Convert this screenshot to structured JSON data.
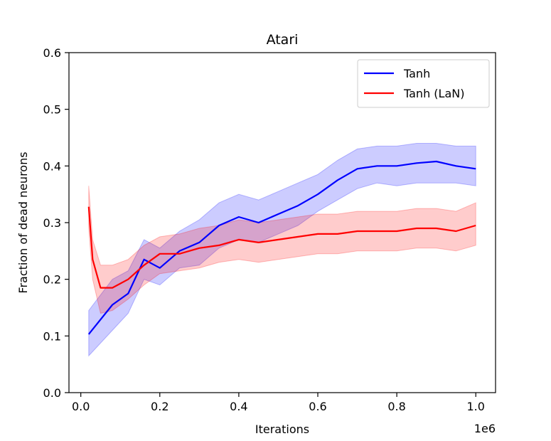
{
  "chart_data": {
    "type": "line",
    "title": "Atari",
    "xlabel": "Iterations",
    "ylabel": "Fraction of dead neurons",
    "x_offset_text": "1e6",
    "xlim": [
      -0.03,
      1.05
    ],
    "ylim": [
      0.0,
      0.6
    ],
    "xticks": [
      0.0,
      0.2,
      0.4,
      0.6,
      0.8,
      1.0
    ],
    "xtick_labels": [
      "0.0",
      "0.2",
      "0.4",
      "0.6",
      "0.8",
      "1.0"
    ],
    "yticks": [
      0.0,
      0.1,
      0.2,
      0.3,
      0.4,
      0.5,
      0.6
    ],
    "ytick_labels": [
      "0.0",
      "0.1",
      "0.2",
      "0.3",
      "0.4",
      "0.5",
      "0.6"
    ],
    "legend_position": "top-right",
    "series": [
      {
        "name": "Tanh",
        "color": "#0000ff",
        "band_color": "#0000ff",
        "x": [
          0.02,
          0.08,
          0.12,
          0.16,
          0.2,
          0.25,
          0.3,
          0.35,
          0.4,
          0.45,
          0.5,
          0.55,
          0.6,
          0.65,
          0.7,
          0.75,
          0.8,
          0.85,
          0.9,
          0.95,
          1.0
        ],
        "values": [
          0.103,
          0.155,
          0.175,
          0.235,
          0.22,
          0.25,
          0.265,
          0.295,
          0.31,
          0.3,
          0.315,
          0.33,
          0.35,
          0.375,
          0.395,
          0.4,
          0.4,
          0.405,
          0.408,
          0.4,
          0.395
        ],
        "lower": [
          0.065,
          0.11,
          0.14,
          0.2,
          0.19,
          0.22,
          0.225,
          0.255,
          0.27,
          0.265,
          0.28,
          0.295,
          0.32,
          0.34,
          0.36,
          0.37,
          0.365,
          0.37,
          0.37,
          0.37,
          0.365
        ],
        "upper": [
          0.145,
          0.2,
          0.215,
          0.27,
          0.255,
          0.285,
          0.305,
          0.335,
          0.35,
          0.34,
          0.355,
          0.37,
          0.385,
          0.41,
          0.43,
          0.435,
          0.435,
          0.44,
          0.44,
          0.435,
          0.435
        ]
      },
      {
        "name": "Tanh (LaN)",
        "color": "#ff0000",
        "band_color": "#ff0000",
        "x": [
          0.02,
          0.03,
          0.05,
          0.08,
          0.12,
          0.16,
          0.2,
          0.25,
          0.3,
          0.35,
          0.4,
          0.45,
          0.5,
          0.55,
          0.6,
          0.65,
          0.7,
          0.75,
          0.8,
          0.85,
          0.9,
          0.95,
          1.0
        ],
        "values": [
          0.328,
          0.235,
          0.185,
          0.185,
          0.2,
          0.225,
          0.245,
          0.245,
          0.255,
          0.26,
          0.27,
          0.265,
          0.27,
          0.275,
          0.28,
          0.28,
          0.285,
          0.285,
          0.285,
          0.29,
          0.29,
          0.285,
          0.295
        ],
        "lower": [
          0.29,
          0.2,
          0.14,
          0.145,
          0.165,
          0.19,
          0.21,
          0.215,
          0.22,
          0.23,
          0.235,
          0.23,
          0.235,
          0.24,
          0.245,
          0.245,
          0.25,
          0.25,
          0.25,
          0.255,
          0.255,
          0.25,
          0.26
        ],
        "upper": [
          0.365,
          0.27,
          0.225,
          0.225,
          0.235,
          0.26,
          0.275,
          0.28,
          0.29,
          0.295,
          0.305,
          0.3,
          0.305,
          0.31,
          0.315,
          0.315,
          0.32,
          0.32,
          0.32,
          0.325,
          0.325,
          0.32,
          0.335
        ]
      }
    ]
  }
}
